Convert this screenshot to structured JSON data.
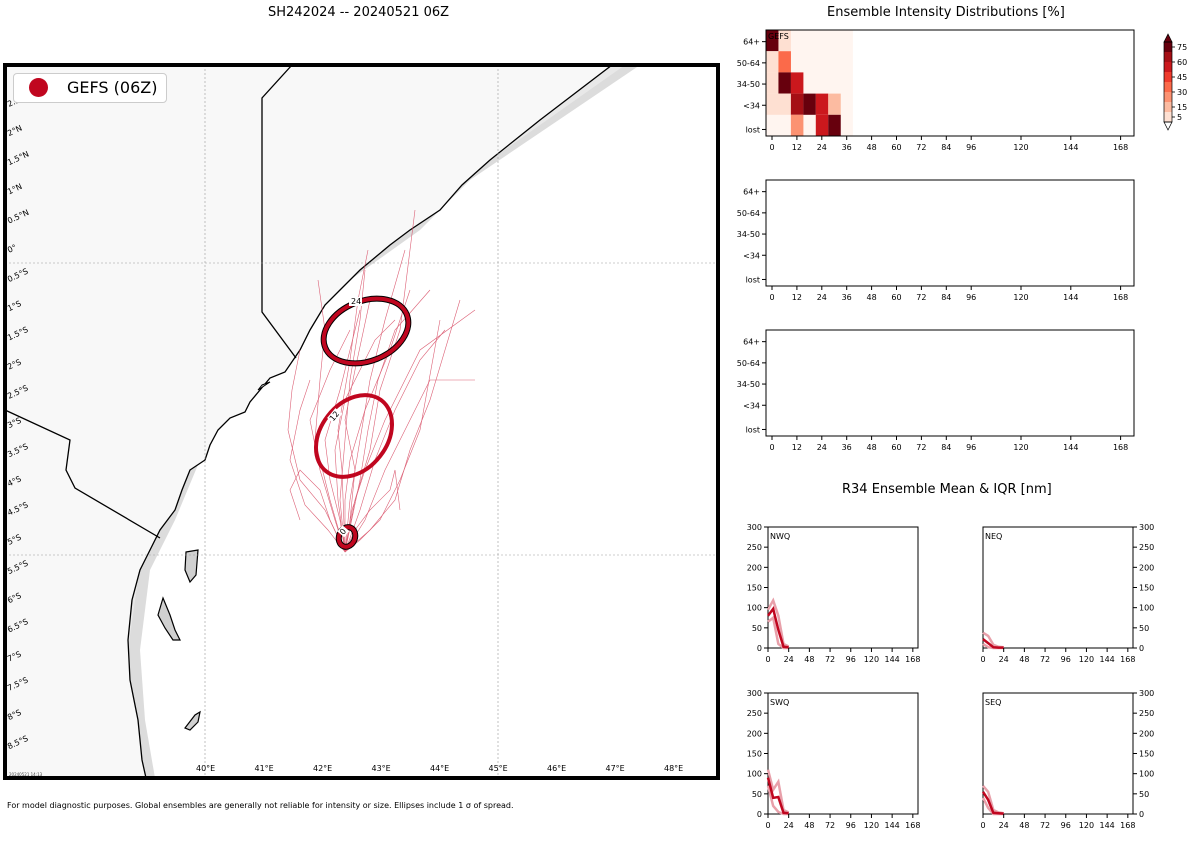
{
  "header": {
    "storm_title": "SH242024 -- 20240521 06Z",
    "intensity_title": "Ensemble Intensity Distributions [%]",
    "r34_title": "R34 Ensemble Mean & IQR [nm]",
    "footer": "For model diagnostic purposes. Global ensembles are generally not reliable for intensity or size. Ellipses include 1 σ of spread.",
    "map_timestamp": "20240521 14:13"
  },
  "map": {
    "legend_label": "GEFS (06Z)",
    "legend_color": "#c0061f",
    "land_color": "#f8f8f8",
    "ocean_shade_color": "#d0d0d0",
    "lat_labels": [
      "2.5°N",
      "2°N",
      "1.5°N",
      "1°N",
      "0.5°N",
      "0°",
      "0.5°S",
      "1°S",
      "1.5°S",
      "2°S",
      "2.5°S",
      "3°S",
      "3.5°S",
      "4°S",
      "4.5°S",
      "5°S",
      "5.5°S",
      "6°S",
      "6.5°S",
      "7°S",
      "7.5°S",
      "8°S",
      "8.5°S"
    ],
    "lon_labels": [
      "40°E",
      "41°E",
      "42°E",
      "43°E",
      "44°E",
      "45°E",
      "46°E",
      "47°E",
      "48°E"
    ],
    "ellipse_labels": [
      "0",
      "12",
      "24"
    ]
  },
  "chart_data": [
    {
      "type": "heatmap",
      "title": "Ensemble Intensity Distributions [%]",
      "panel_label": "GEFS",
      "rows": [
        "64+",
        "50-64",
        "34-50",
        "<34",
        "lost"
      ],
      "x_ticks": [
        "0",
        "12",
        "24",
        "36",
        "48",
        "60",
        "72",
        "84",
        "96",
        "120",
        "144",
        "168"
      ],
      "colorbar_ticks": [
        "5",
        "15",
        "30",
        "45",
        "60",
        "75"
      ],
      "colorscale": [
        "#fee0d2",
        "#fcbba1",
        "#fc9272",
        "#fb6a4a",
        "#ef3b2c",
        "#cb181d",
        "#a50f15",
        "#67000d"
      ],
      "cells": [
        {
          "hour": 0,
          "row": "64+",
          "value": 78
        },
        {
          "hour": 0,
          "row": "50-64",
          "value": 8
        },
        {
          "hour": 0,
          "row": "34-50",
          "value": 5
        },
        {
          "hour": 0,
          "row": "<34",
          "value": 5
        },
        {
          "hour": 0,
          "row": "lost",
          "value": 4
        },
        {
          "hour": 6,
          "row": "64+",
          "value": 5
        },
        {
          "hour": 6,
          "row": "50-64",
          "value": 30
        },
        {
          "hour": 6,
          "row": "34-50",
          "value": 75
        },
        {
          "hour": 6,
          "row": "<34",
          "value": 5
        },
        {
          "hour": 6,
          "row": "lost",
          "value": 4
        },
        {
          "hour": 12,
          "row": "64+",
          "value": 4
        },
        {
          "hour": 12,
          "row": "50-64",
          "value": 4
        },
        {
          "hour": 12,
          "row": "34-50",
          "value": 55
        },
        {
          "hour": 12,
          "row": "<34",
          "value": 60
        },
        {
          "hour": 12,
          "row": "lost",
          "value": 25
        },
        {
          "hour": 18,
          "row": "64+",
          "value": 4
        },
        {
          "hour": 18,
          "row": "50-64",
          "value": 4
        },
        {
          "hour": 18,
          "row": "34-50",
          "value": 4
        },
        {
          "hour": 18,
          "row": "<34",
          "value": 78
        },
        {
          "hour": 18,
          "row": "lost",
          "value": 4
        },
        {
          "hour": 24,
          "row": "64+",
          "value": 4
        },
        {
          "hour": 24,
          "row": "50-64",
          "value": 4
        },
        {
          "hour": 24,
          "row": "34-50",
          "value": 4
        },
        {
          "hour": 24,
          "row": "<34",
          "value": 55
        },
        {
          "hour": 24,
          "row": "lost",
          "value": 50
        },
        {
          "hour": 30,
          "row": "64+",
          "value": 4
        },
        {
          "hour": 30,
          "row": "50-64",
          "value": 4
        },
        {
          "hour": 30,
          "row": "34-50",
          "value": 4
        },
        {
          "hour": 30,
          "row": "<34",
          "value": 12
        },
        {
          "hour": 30,
          "row": "lost",
          "value": 85
        }
      ]
    },
    {
      "type": "heatmap",
      "title": "",
      "rows": [
        "64+",
        "50-64",
        "34-50",
        "<34",
        "lost"
      ],
      "x_ticks": [
        "0",
        "12",
        "24",
        "36",
        "48",
        "60",
        "72",
        "84",
        "96",
        "120",
        "144",
        "168"
      ],
      "cells": []
    },
    {
      "type": "heatmap",
      "title": "",
      "rows": [
        "64+",
        "50-64",
        "34-50",
        "<34",
        "lost"
      ],
      "x_ticks": [
        "0",
        "12",
        "24",
        "36",
        "48",
        "60",
        "72",
        "84",
        "96",
        "120",
        "144",
        "168"
      ],
      "cells": []
    },
    {
      "type": "line",
      "title": "NWQ",
      "x_ticks": [
        "0",
        "24",
        "48",
        "72",
        "96",
        "120",
        "144",
        "168"
      ],
      "y_ticks": [
        "0",
        "50",
        "100",
        "150",
        "200",
        "250",
        "300"
      ],
      "ylim": [
        0,
        300
      ],
      "xlim": [
        0,
        174
      ],
      "series": [
        {
          "name": "mean",
          "x": [
            0,
            6,
            12,
            18,
            24
          ],
          "values": [
            80,
            97,
            45,
            3,
            2
          ]
        },
        {
          "name": "iqr_high",
          "x": [
            0,
            6,
            12,
            18,
            24
          ],
          "values": [
            95,
            118,
            80,
            10,
            4
          ]
        },
        {
          "name": "iqr_low",
          "x": [
            0,
            6,
            12,
            18,
            24
          ],
          "values": [
            65,
            75,
            10,
            0,
            0
          ]
        }
      ]
    },
    {
      "type": "line",
      "title": "NEQ",
      "x_ticks": [
        "0",
        "24",
        "48",
        "72",
        "96",
        "120",
        "144",
        "168"
      ],
      "y_ticks": [
        "0",
        "50",
        "100",
        "150",
        "200",
        "250",
        "300"
      ],
      "ylim": [
        0,
        300
      ],
      "xlim": [
        0,
        174
      ],
      "series": [
        {
          "name": "mean",
          "x": [
            0,
            6,
            12,
            18,
            24
          ],
          "values": [
            22,
            12,
            2,
            1,
            1
          ]
        },
        {
          "name": "iqr_high",
          "x": [
            0,
            6,
            12,
            18,
            24
          ],
          "values": [
            38,
            30,
            8,
            3,
            2
          ]
        },
        {
          "name": "iqr_low",
          "x": [
            0,
            6,
            12,
            18,
            24
          ],
          "values": [
            10,
            2,
            0,
            0,
            0
          ]
        }
      ]
    },
    {
      "type": "line",
      "title": "SWQ",
      "x_ticks": [
        "0",
        "24",
        "48",
        "72",
        "96",
        "120",
        "144",
        "168"
      ],
      "y_ticks": [
        "0",
        "50",
        "100",
        "150",
        "200",
        "250",
        "300"
      ],
      "ylim": [
        0,
        300
      ],
      "xlim": [
        0,
        174
      ],
      "series": [
        {
          "name": "mean",
          "x": [
            0,
            6,
            12,
            18,
            24
          ],
          "values": [
            90,
            40,
            42,
            3,
            2
          ]
        },
        {
          "name": "iqr_high",
          "x": [
            0,
            6,
            12,
            18,
            24
          ],
          "values": [
            110,
            60,
            80,
            10,
            4
          ]
        },
        {
          "name": "iqr_low",
          "x": [
            0,
            6,
            12,
            18,
            24
          ],
          "values": [
            70,
            20,
            5,
            0,
            0
          ]
        }
      ]
    },
    {
      "type": "line",
      "title": "SEQ",
      "x_ticks": [
        "0",
        "24",
        "48",
        "72",
        "96",
        "120",
        "144",
        "168"
      ],
      "y_ticks": [
        "0",
        "50",
        "100",
        "150",
        "200",
        "250",
        "300"
      ],
      "ylim": [
        0,
        300
      ],
      "xlim": [
        0,
        174
      ],
      "series": [
        {
          "name": "mean",
          "x": [
            0,
            6,
            12,
            18,
            24
          ],
          "values": [
            55,
            35,
            3,
            2,
            1
          ]
        },
        {
          "name": "iqr_high",
          "x": [
            0,
            6,
            12,
            18,
            24
          ],
          "values": [
            70,
            55,
            10,
            4,
            2
          ]
        },
        {
          "name": "iqr_low",
          "x": [
            0,
            6,
            12,
            18,
            24
          ],
          "values": [
            40,
            15,
            0,
            0,
            0
          ]
        }
      ]
    }
  ]
}
